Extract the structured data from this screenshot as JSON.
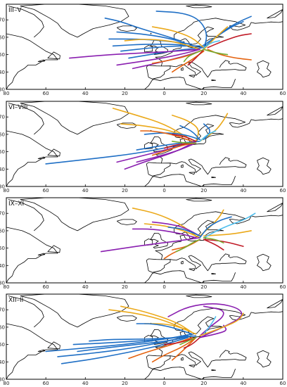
{
  "figure": {
    "x_tick_labels": [
      "80",
      "60",
      "40",
      "20",
      "0",
      "20",
      "40",
      "60"
    ],
    "y_tick_labels": [
      "70",
      "60",
      "50",
      "40",
      "30"
    ]
  },
  "colors": {
    "blue": "#1f6fc5",
    "orange": "#e4620f",
    "yellow": "#eba91a",
    "purple": "#8a1fb0",
    "green": "#77ac30",
    "cyan": "#4dbeee",
    "red": "#c01a26"
  },
  "panels": [
    {
      "label": "III–V",
      "trajectories": [
        {
          "color": "blue",
          "lon": [
            8,
            0,
            -12,
            -22,
            -30
          ],
          "lat": [
            58,
            61,
            65,
            69,
            71
          ]
        },
        {
          "color": "blue",
          "lon": [
            10,
            0,
            -12,
            -24
          ],
          "lat": [
            57,
            60,
            62,
            63
          ]
        },
        {
          "color": "blue",
          "lon": [
            14,
            0,
            -14,
            -28
          ],
          "lat": [
            56,
            58,
            59,
            59
          ]
        },
        {
          "color": "blue",
          "lon": [
            16,
            4,
            -10,
            -26
          ],
          "lat": [
            55,
            56,
            56,
            55
          ]
        },
        {
          "color": "blue",
          "lon": [
            18,
            6,
            -6,
            -22
          ],
          "lat": [
            55,
            55,
            54,
            52
          ]
        },
        {
          "color": "blue",
          "lon": [
            20,
            10,
            -2,
            -18
          ],
          "lat": [
            54,
            53,
            51,
            48
          ]
        },
        {
          "color": "blue",
          "lon": [
            20,
            22,
            18,
            10,
            -4
          ],
          "lat": [
            53,
            62,
            70,
            74,
            75
          ]
        },
        {
          "color": "blue",
          "lon": [
            20,
            28,
            36,
            44
          ],
          "lat": [
            54,
            62,
            68,
            72
          ]
        },
        {
          "color": "blue",
          "lon": [
            18,
            26,
            34,
            40
          ],
          "lat": [
            54,
            60,
            66,
            69
          ]
        },
        {
          "color": "yellow",
          "lon": [
            20,
            14,
            4,
            -6
          ],
          "lat": [
            54,
            60,
            64,
            66
          ]
        },
        {
          "color": "yellow",
          "lon": [
            18,
            10,
            2,
            -10,
            -20
          ],
          "lat": [
            53,
            56,
            58,
            59,
            58
          ]
        },
        {
          "color": "yellow",
          "lon": [
            20,
            26,
            32
          ],
          "lat": [
            53,
            60,
            66
          ]
        },
        {
          "color": "purple",
          "lon": [
            18,
            6,
            -10,
            -28,
            -48
          ],
          "lat": [
            53,
            52,
            51,
            50,
            48
          ]
        },
        {
          "color": "purple",
          "lon": [
            18,
            8,
            -6,
            -24
          ],
          "lat": [
            53,
            50,
            47,
            44
          ]
        },
        {
          "color": "purple",
          "lon": [
            18,
            10,
            -4,
            -16
          ],
          "lat": [
            52,
            49,
            45,
            42
          ]
        },
        {
          "color": "orange",
          "lon": [
            20,
            14,
            4,
            -6
          ],
          "lat": [
            53,
            50,
            47,
            45
          ]
        },
        {
          "color": "orange",
          "lon": [
            20,
            14,
            8,
            4
          ],
          "lat": [
            52,
            47,
            43,
            40
          ]
        },
        {
          "color": "orange",
          "lon": [
            22,
            28,
            36,
            44
          ],
          "lat": [
            53,
            50,
            48,
            47
          ]
        },
        {
          "color": "red",
          "lon": [
            20,
            16,
            12
          ],
          "lat": [
            53,
            48,
            44
          ]
        },
        {
          "color": "red",
          "lon": [
            22,
            30,
            38,
            44
          ],
          "lat": [
            54,
            58,
            61,
            62
          ]
        },
        {
          "color": "green",
          "lon": [
            20,
            16,
            12,
            10
          ],
          "lat": [
            53,
            51,
            49,
            46
          ]
        },
        {
          "color": "green",
          "lon": [
            20,
            26,
            32
          ],
          "lat": [
            53,
            51,
            50
          ]
        },
        {
          "color": "cyan",
          "lon": [
            20,
            24,
            28
          ],
          "lat": [
            54,
            57,
            58
          ]
        }
      ]
    },
    {
      "label": "VI–VIII",
      "trajectories": [
        {
          "color": "yellow",
          "lon": [
            12,
            0,
            -14,
            -26
          ],
          "lat": [
            58,
            66,
            71,
            75
          ]
        },
        {
          "color": "yellow",
          "lon": [
            14,
            4,
            -10,
            -22
          ],
          "lat": [
            57,
            62,
            65,
            66
          ]
        },
        {
          "color": "yellow",
          "lon": [
            16,
            18,
            12,
            4
          ],
          "lat": [
            56,
            63,
            68,
            71
          ]
        },
        {
          "color": "yellow",
          "lon": [
            18,
            26,
            30,
            32
          ],
          "lat": [
            56,
            62,
            68,
            72
          ]
        },
        {
          "color": "blue",
          "lon": [
            16,
            4,
            -14,
            -36,
            -60
          ],
          "lat": [
            56,
            53,
            49,
            46,
            43
          ]
        },
        {
          "color": "blue",
          "lon": [
            18,
            10,
            0,
            -10
          ],
          "lat": [
            57,
            60,
            61,
            60
          ]
        },
        {
          "color": "blue",
          "lon": [
            18,
            14,
            8
          ],
          "lat": [
            57,
            62,
            65
          ]
        },
        {
          "color": "blue",
          "lon": [
            20,
            24,
            20
          ],
          "lat": [
            57,
            62,
            66
          ]
        },
        {
          "color": "blue",
          "lon": [
            18,
            8,
            -4,
            -14
          ],
          "lat": [
            56,
            55,
            53,
            51
          ]
        },
        {
          "color": "purple",
          "lon": [
            16,
            4,
            -10,
            -24
          ],
          "lat": [
            56,
            52,
            48,
            44
          ]
        },
        {
          "color": "purple",
          "lon": [
            16,
            6,
            -8,
            -20
          ],
          "lat": [
            56,
            50,
            45,
            40
          ]
        },
        {
          "color": "purple",
          "lon": [
            16,
            8,
            -4,
            -14
          ],
          "lat": [
            55,
            51,
            47,
            44
          ]
        },
        {
          "color": "orange",
          "lon": [
            14,
            4,
            -6,
            -12
          ],
          "lat": [
            56,
            60,
            62,
            62
          ]
        },
        {
          "color": "orange",
          "lon": [
            16,
            10,
            2,
            -6
          ],
          "lat": [
            55,
            54,
            51,
            48
          ]
        },
        {
          "color": "red",
          "lon": [
            16,
            10,
            4
          ],
          "lat": [
            56,
            59,
            60
          ]
        },
        {
          "color": "red",
          "lon": [
            14,
            6,
            0
          ],
          "lat": [
            55,
            54,
            52
          ]
        },
        {
          "color": "green",
          "lon": [
            16,
            10,
            4
          ],
          "lat": [
            55,
            55,
            56
          ]
        },
        {
          "color": "cyan",
          "lon": [
            18,
            22,
            26
          ],
          "lat": [
            56,
            60,
            62
          ]
        }
      ]
    },
    {
      "label": "IX–XI",
      "trajectories": [
        {
          "color": "yellow",
          "lon": [
            16,
            8,
            -4,
            -16
          ],
          "lat": [
            57,
            64,
            70,
            73
          ]
        },
        {
          "color": "yellow",
          "lon": [
            18,
            24,
            28,
            30
          ],
          "lat": [
            57,
            63,
            68,
            72
          ]
        },
        {
          "color": "yellow",
          "lon": [
            20,
            34,
            44
          ],
          "lat": [
            57,
            58,
            60
          ]
        },
        {
          "color": "yellow",
          "lon": [
            18,
            10,
            0,
            -10
          ],
          "lat": [
            56,
            60,
            63,
            64
          ]
        },
        {
          "color": "purple",
          "lon": [
            18,
            6,
            -8,
            -20,
            -32
          ],
          "lat": [
            56,
            54,
            52,
            50,
            48
          ]
        },
        {
          "color": "purple",
          "lon": [
            16,
            6,
            -6,
            -16
          ],
          "lat": [
            56,
            59,
            61,
            61
          ]
        },
        {
          "color": "purple",
          "lon": [
            18,
            10,
            2,
            -6
          ],
          "lat": [
            57,
            62,
            64,
            65
          ]
        },
        {
          "color": "blue",
          "lon": [
            18,
            22,
            28,
            34
          ],
          "lat": [
            56,
            62,
            66,
            68
          ]
        },
        {
          "color": "blue",
          "lon": [
            18,
            10,
            2
          ],
          "lat": [
            57,
            61,
            62
          ]
        },
        {
          "color": "cyan",
          "lon": [
            20,
            30,
            40,
            46
          ],
          "lat": [
            56,
            62,
            66,
            70
          ]
        },
        {
          "color": "orange",
          "lon": [
            18,
            10,
            4,
            0
          ],
          "lat": [
            55,
            50,
            47,
            44
          ]
        },
        {
          "color": "orange",
          "lon": [
            18,
            12,
            4
          ],
          "lat": [
            55,
            51,
            49
          ]
        },
        {
          "color": "red",
          "lon": [
            20,
            30,
            40
          ],
          "lat": [
            55,
            54,
            51
          ]
        },
        {
          "color": "red",
          "lon": [
            20,
            26,
            30
          ],
          "lat": [
            55,
            52,
            49
          ]
        },
        {
          "color": "green",
          "lon": [
            18,
            14,
            10,
            6
          ],
          "lat": [
            55,
            53,
            50,
            48
          ]
        },
        {
          "color": "green",
          "lon": [
            20,
            26,
            30
          ],
          "lat": [
            56,
            55,
            53
          ]
        }
      ]
    },
    {
      "label": "XII–II",
      "trajectories": [
        {
          "color": "yellow",
          "lon": [
            12,
            0,
            -14,
            -28
          ],
          "lat": [
            58,
            64,
            68,
            70
          ]
        },
        {
          "color": "yellow",
          "lon": [
            14,
            6,
            -10,
            -22
          ],
          "lat": [
            57,
            63,
            69,
            72
          ]
        },
        {
          "color": "yellow",
          "lon": [
            16,
            8,
            0,
            -10
          ],
          "lat": [
            56,
            60,
            62,
            62
          ]
        },
        {
          "color": "blue",
          "lon": [
            14,
            0,
            -20,
            -40,
            -60
          ],
          "lat": [
            56,
            53,
            50,
            48,
            46
          ]
        },
        {
          "color": "blue",
          "lon": [
            14,
            2,
            -16,
            -36,
            -54
          ],
          "lat": [
            55,
            52,
            48,
            45,
            43
          ]
        },
        {
          "color": "blue",
          "lon": [
            14,
            2,
            -14,
            -30,
            -44
          ],
          "lat": [
            55,
            52,
            50,
            48,
            46
          ]
        },
        {
          "color": "blue",
          "lon": [
            16,
            6,
            -10,
            -26,
            -38
          ],
          "lat": [
            55,
            54,
            53,
            53,
            52
          ]
        },
        {
          "color": "blue",
          "lon": [
            14,
            4,
            -6,
            -14
          ],
          "lat": [
            56,
            60,
            62,
            62
          ]
        },
        {
          "color": "blue",
          "lon": [
            12,
            0,
            -14,
            -28,
            -46
          ],
          "lat": [
            55,
            53,
            52,
            51,
            50
          ]
        },
        {
          "color": "blue",
          "lon": [
            12,
            0,
            -16,
            -34,
            -52
          ],
          "lat": [
            54,
            50,
            46,
            42,
            39
          ]
        },
        {
          "color": "orange",
          "lon": [
            14,
            4,
            -8,
            -18
          ],
          "lat": [
            54,
            50,
            46,
            42
          ]
        },
        {
          "color": "orange",
          "lon": [
            16,
            10,
            0,
            -6
          ],
          "lat": [
            54,
            49,
            44,
            40
          ]
        },
        {
          "color": "orange",
          "lon": [
            16,
            10,
            4
          ],
          "lat": [
            54,
            47,
            41
          ]
        },
        {
          "color": "red",
          "lon": [
            16,
            8,
            0
          ],
          "lat": [
            54,
            51,
            50
          ]
        },
        {
          "color": "red",
          "lon": [
            18,
            14,
            10
          ],
          "lat": [
            54,
            50,
            48
          ]
        },
        {
          "color": "purple",
          "lon": [
            18,
            30,
            40,
            38,
            26,
            12,
            2
          ],
          "lat": [
            54,
            60,
            66,
            71,
            74,
            72,
            66
          ]
        },
        {
          "color": "purple",
          "lon": [
            18,
            24,
            30,
            30,
            20
          ],
          "lat": [
            55,
            61,
            66,
            70,
            72
          ]
        },
        {
          "color": "purple",
          "lon": [
            18,
            26,
            32,
            30
          ],
          "lat": [
            54,
            56,
            58,
            61
          ]
        },
        {
          "color": "green",
          "lon": [
            16,
            12,
            8
          ],
          "lat": [
            54,
            52,
            50
          ]
        },
        {
          "color": "cyan",
          "lon": [
            20,
            24,
            26
          ],
          "lat": [
            56,
            62,
            66
          ]
        },
        {
          "color": "yellow",
          "lon": [
            18,
            30,
            38,
            40
          ],
          "lat": [
            55,
            60,
            64,
            68
          ]
        }
      ]
    }
  ]
}
